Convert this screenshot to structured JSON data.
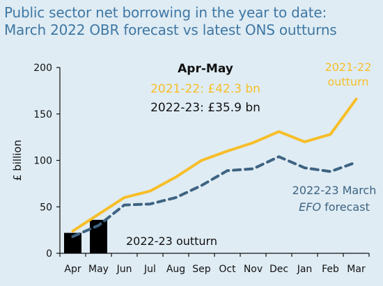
{
  "title_line1": "Public sector net borrowing in the year to date:",
  "title_line2": "March 2022 OBR forecast vs latest ONS outturns",
  "colors": {
    "background": "#dfecf4",
    "title": "#3f77a3",
    "series_2021_22": "#f7be28",
    "series_efo": "#3e6381",
    "bars": "#000000"
  },
  "chart_data": {
    "type": "line",
    "ylabel": "£ billion",
    "ylim": [
      0,
      200
    ],
    "yticks": [
      0,
      50,
      100,
      150,
      200
    ],
    "categories": [
      "Apr",
      "May",
      "Jun",
      "Jul",
      "Aug",
      "Sep",
      "Oct",
      "Nov",
      "Dec",
      "Jan",
      "Feb",
      "Mar"
    ],
    "series": [
      {
        "name": "2021-22",
        "style": "solid",
        "values": [
          24,
          42,
          60,
          67,
          82,
          100,
          110,
          119,
          131,
          120,
          128,
          166
        ]
      },
      {
        "name": "2022-23 March EFO forecast",
        "style": "dashed",
        "values": [
          18,
          30,
          52,
          53,
          60,
          73,
          89,
          91,
          104,
          92,
          88,
          98
        ]
      }
    ],
    "bars": {
      "name": "2022-23 outturn",
      "values": [
        22,
        36
      ]
    },
    "annotations": {
      "header": "Apr-May",
      "line_2021": "2021-22: £42.3 bn",
      "line_2022": "2022-23: £35.9 bn",
      "legend_2021_line1": "2021-22",
      "legend_2021_line2": "outturn",
      "legend_efo_line1": "2022-23 March",
      "legend_efo_line2_italic": "EFO",
      "legend_efo_line2_rest": " forecast",
      "legend_bars": "2022-23 outturn"
    }
  }
}
